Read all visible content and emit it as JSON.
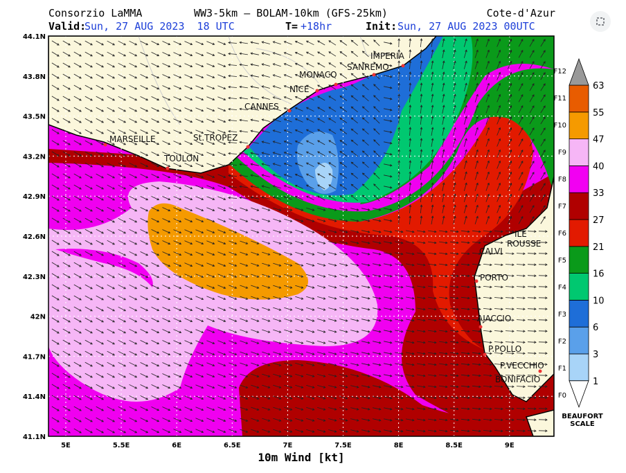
{
  "header": {
    "agency": "Consorzio LaMMA",
    "model": "WW3-5km — BOLAM-10km (GFS-25km)",
    "region": "Cote-d'Azur",
    "valid_label": "Valid:",
    "valid": "Sun, 27 AUG 2023  18 UTC",
    "lead_label": "T=",
    "lead": "+18hr",
    "init_label": "Init:",
    "init": "Sun, 27 AUG 2023 00UTC"
  },
  "map": {
    "lat_labels": [
      "44.1N",
      "43.8N",
      "43.5N",
      "43.2N",
      "42.9N",
      "42.6N",
      "42.3N",
      "42N",
      "41.7N",
      "41.4N",
      "41.1N"
    ],
    "lon_labels": [
      "5E",
      "5.5E",
      "6E",
      "6.5E",
      "7E",
      "7.5E",
      "8E",
      "8.5E",
      "9E"
    ],
    "xlabel": "10m Wind [kt]",
    "places": [
      "MARSEILLE",
      "TOULON",
      "St.TROPEZ",
      "CANNES",
      "NICE",
      "MONACO",
      "SANREMO",
      "IMPERIA",
      "ILE",
      "ROUSSE",
      "CALVI",
      "PORTO",
      "AJACCIO",
      "P.POLLO",
      "P.VECCHIO",
      "BONIFACIO"
    ]
  },
  "legend": {
    "values": [
      "1",
      "3",
      "6",
      "10",
      "16",
      "21",
      "27",
      "33",
      "40",
      "47",
      "55",
      "63"
    ],
    "beaufort": [
      "F0",
      "F1",
      "F2",
      "F3",
      "F4",
      "F5",
      "F6",
      "F7",
      "F8",
      "F9",
      "F10",
      "F11",
      "F12"
    ],
    "title": [
      "BEAUFORT",
      "SCALE"
    ]
  }
}
